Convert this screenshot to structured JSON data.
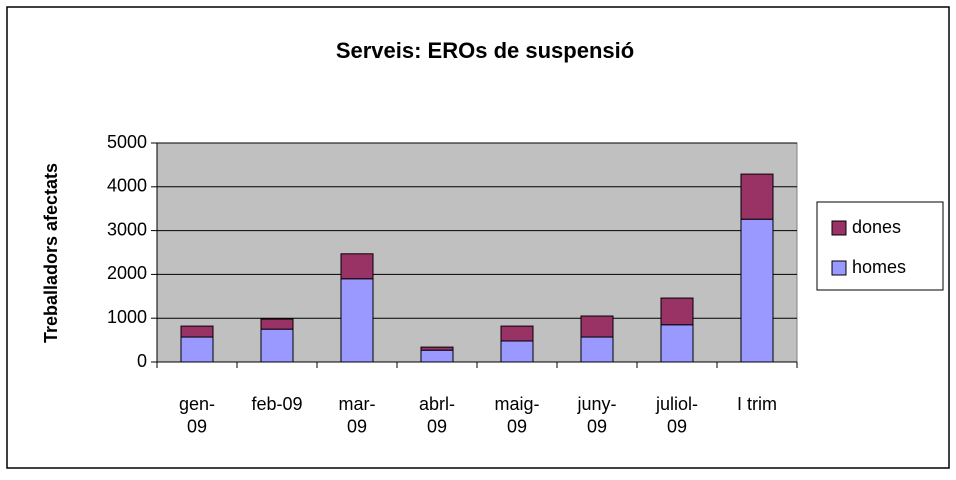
{
  "chart_data": {
    "type": "bar",
    "stacked": true,
    "title": "Serveis: EROs de suspensió",
    "y_label": "Treballadors afectats",
    "categories": [
      "gen-\n09",
      "feb-09",
      "mar-\n09",
      "abrl-\n09",
      "maig-\n09",
      "juny-\n09",
      "juliol-\n09",
      "I trim"
    ],
    "series": [
      {
        "name": "homes",
        "color": "#9999ff",
        "values": [
          570,
          750,
          1900,
          270,
          480,
          570,
          850,
          3260
        ]
      },
      {
        "name": "dones",
        "color": "#993366",
        "values": [
          250,
          230,
          570,
          70,
          340,
          480,
          610,
          1030
        ]
      }
    ],
    "ylim": [
      0,
      5000
    ],
    "yticks": [
      0,
      1000,
      2000,
      3000,
      4000,
      5000
    ],
    "grid": true,
    "legend": "right",
    "plot_background": "#c0c0c0"
  }
}
